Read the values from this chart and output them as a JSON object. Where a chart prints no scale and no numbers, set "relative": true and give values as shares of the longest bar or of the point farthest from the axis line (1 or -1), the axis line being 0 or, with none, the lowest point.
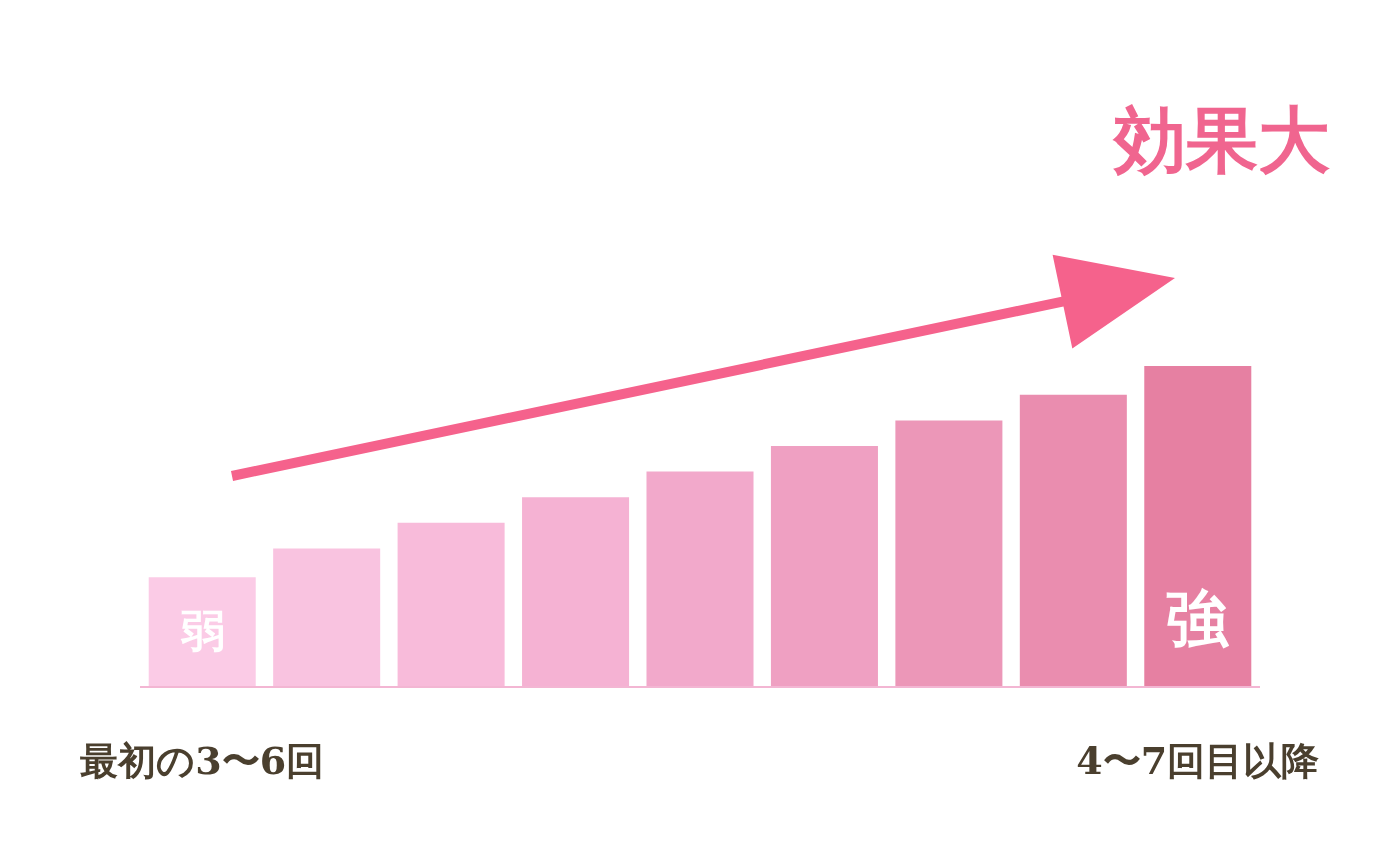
{
  "chart_data": {
    "type": "bar",
    "relative": true,
    "title": "効果大",
    "categories": [
      "最初の3〜6回",
      null,
      null,
      null,
      null,
      null,
      null,
      null,
      "4〜7回目以降"
    ],
    "values": [
      0.34,
      0.43,
      0.51,
      0.59,
      0.67,
      0.75,
      0.83,
      0.91,
      1.0
    ],
    "colors": [
      "#fbcbe6",
      "#f9c3e0",
      "#f8bbda",
      "#f5b2d3",
      "#f2a9cb",
      "#efa0c2",
      "#ec97b8",
      "#ea8daf",
      "#e680a2"
    ],
    "annotations": [
      "弱",
      "強"
    ],
    "legend": false
  }
}
